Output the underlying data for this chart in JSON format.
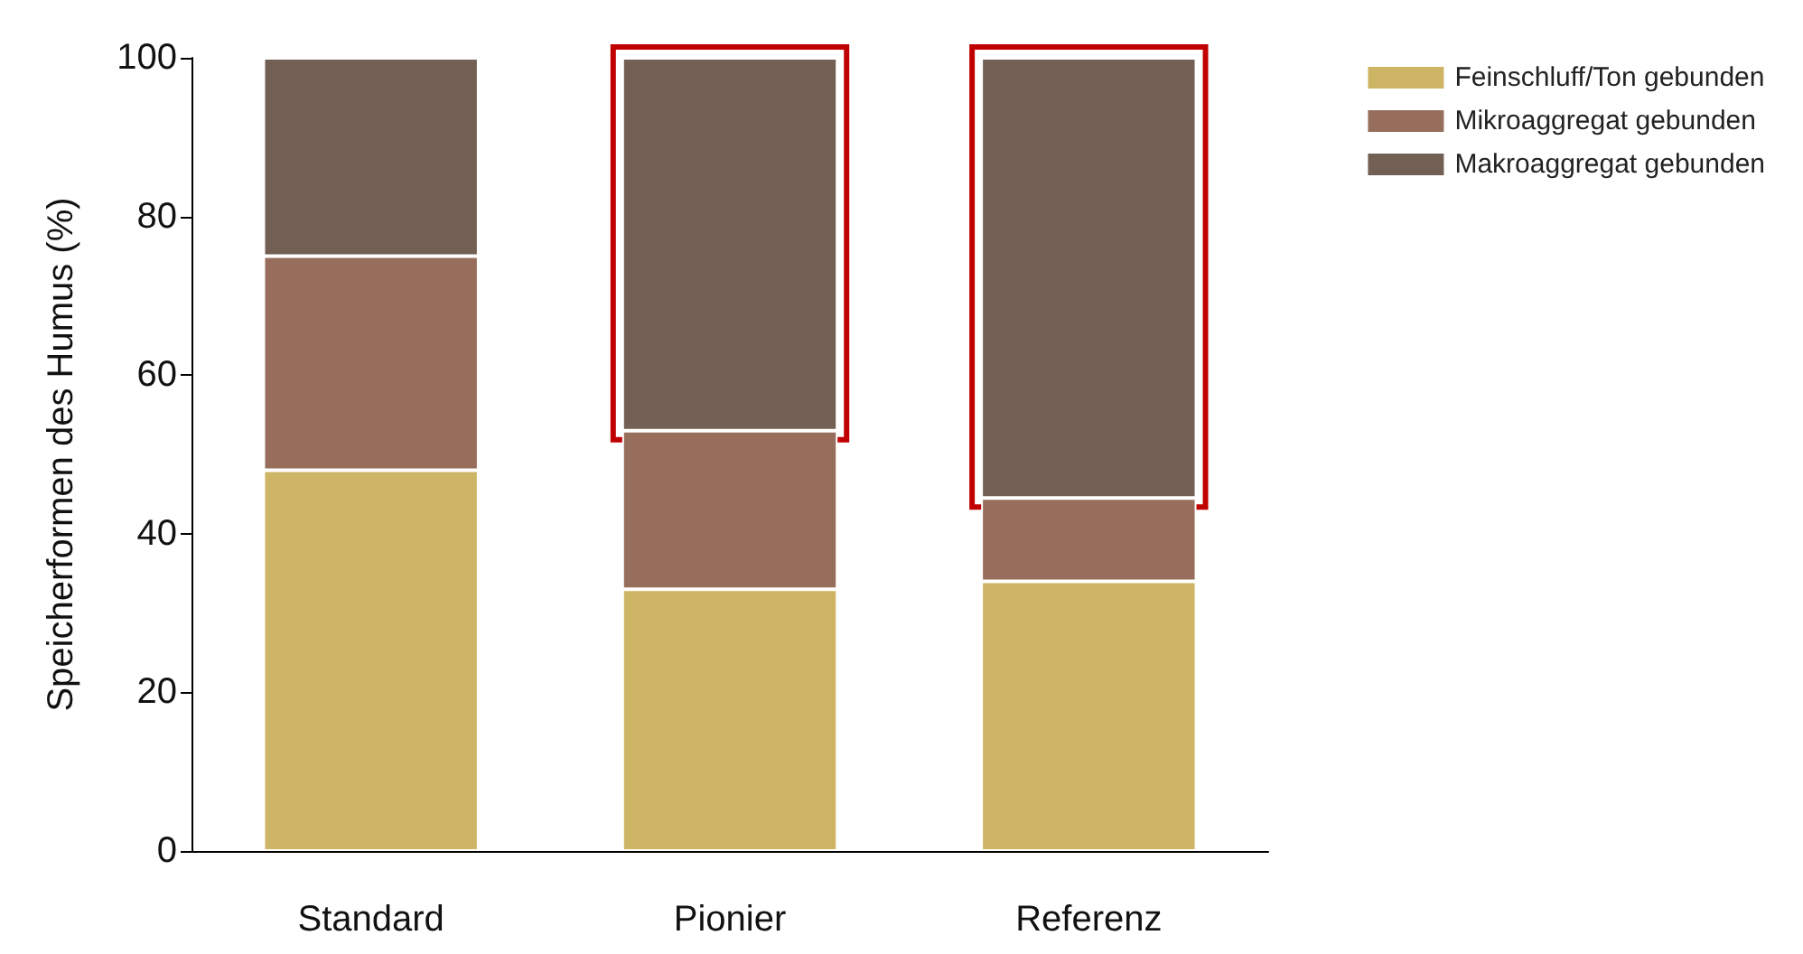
{
  "chart_data": {
    "type": "bar",
    "ylabel": "Speicherformen des Humus (%)",
    "categories": [
      "Standard",
      "Pionier",
      "Referenz"
    ],
    "stacked": true,
    "series": [
      {
        "name": "Feinschluff/Ton gebunden",
        "color": "#cdb565",
        "values": [
          48,
          33,
          34
        ]
      },
      {
        "name": "Mikroaggregat gebunden",
        "color": "#976e5c",
        "values": [
          27,
          20,
          10.5
        ]
      },
      {
        "name": "Makroaggregat gebunden",
        "color": "#736054",
        "values": [
          25,
          47,
          55.5
        ]
      }
    ],
    "ylim": [
      0,
      100
    ],
    "yticks": [
      0,
      20,
      40,
      60,
      80,
      100
    ],
    "grid": false,
    "legend": "top right"
  }
}
